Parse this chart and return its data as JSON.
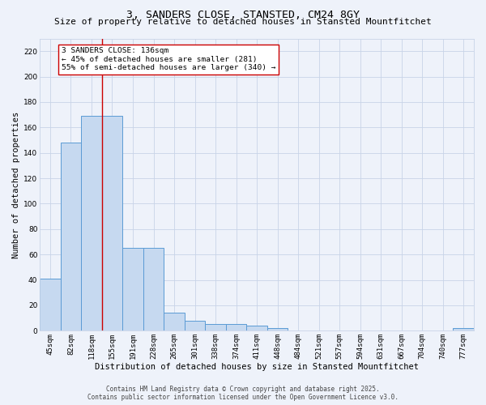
{
  "title": "3, SANDERS CLOSE, STANSTED, CM24 8GY",
  "subtitle": "Size of property relative to detached houses in Stansted Mountfitchet",
  "xlabel": "Distribution of detached houses by size in Stansted Mountfitchet",
  "ylabel": "Number of detached properties",
  "categories": [
    "45sqm",
    "82sqm",
    "118sqm",
    "155sqm",
    "191sqm",
    "228sqm",
    "265sqm",
    "301sqm",
    "338sqm",
    "374sqm",
    "411sqm",
    "448sqm",
    "484sqm",
    "521sqm",
    "557sqm",
    "594sqm",
    "631sqm",
    "667sqm",
    "704sqm",
    "740sqm",
    "777sqm"
  ],
  "values": [
    41,
    148,
    169,
    169,
    65,
    65,
    14,
    8,
    5,
    5,
    4,
    2,
    0,
    0,
    0,
    0,
    0,
    0,
    0,
    0,
    2
  ],
  "bar_color": "#c6d9f0",
  "bar_edge_color": "#5b9bd5",
  "background_color": "#eef2fa",
  "grid_color": "#c8d4e8",
  "ylim": [
    0,
    230
  ],
  "yticks": [
    0,
    20,
    40,
    60,
    80,
    100,
    120,
    140,
    160,
    180,
    200,
    220
  ],
  "property_line_x": 2.5,
  "annotation_text": "3 SANDERS CLOSE: 136sqm\n← 45% of detached houses are smaller (281)\n55% of semi-detached houses are larger (340) →",
  "annotation_box_color": "#ffffff",
  "annotation_border_color": "#cc0000",
  "footer_line1": "Contains HM Land Registry data © Crown copyright and database right 2025.",
  "footer_line2": "Contains public sector information licensed under the Open Government Licence v3.0.",
  "red_line_color": "#cc0000",
  "title_fontsize": 9.5,
  "subtitle_fontsize": 8.0,
  "axis_label_fontsize": 7.5,
  "tick_fontsize": 6.5,
  "annotation_fontsize": 6.8,
  "footer_fontsize": 5.5
}
